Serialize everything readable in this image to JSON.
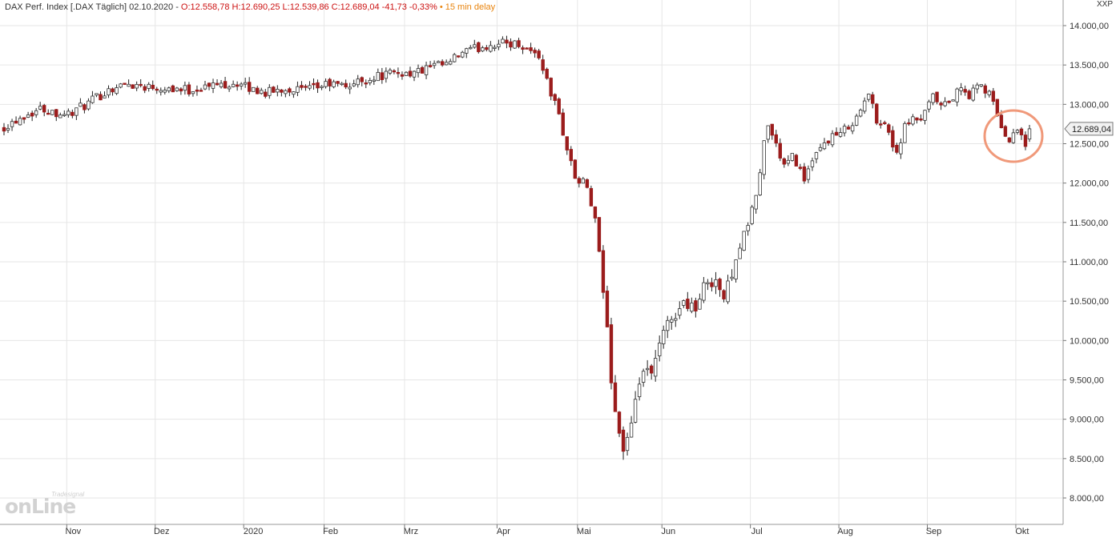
{
  "header": {
    "instrument": "DAX Perf. Index [.DAX Täglich] 02.10.2020 -",
    "ohlc": "O:12.558,78 H:12.690,25 L:12.539,86 C:12.689,04 -41,73 -0,33%",
    "bullet": "•",
    "delay": "15 min delay",
    "axis_code": "XXP"
  },
  "logo": {
    "brand_small": "Tradesignal",
    "brand_big": "onLine"
  },
  "colors": {
    "up_fill": "#ffffff",
    "down_fill": "#9b1c1c",
    "wick": "#222222",
    "grid": "#e6e6e6",
    "highlight": "#f0997a",
    "text": "#333333"
  },
  "chart_data": {
    "type": "candlestick",
    "y_range": [
      7800,
      14200
    ],
    "y_ticks": [
      "14.000,00",
      "13.500,00",
      "13.000,00",
      "12.500,00",
      "12.000,00",
      "11.500,00",
      "11.000,00",
      "10.500,00",
      "10.000,00",
      "9.500,00",
      "9.000,00",
      "8.500,00",
      "8.000,00"
    ],
    "y_tick_values": [
      14000,
      13500,
      13000,
      12500,
      12000,
      11500,
      11000,
      10500,
      10000,
      9500,
      9000,
      8500,
      8000
    ],
    "x_ticks": [
      "Nov",
      "Dez",
      "2020",
      "Feb",
      "Mrz",
      "Apr",
      "Mai",
      "Jun",
      "Jul",
      "Aug",
      "Sep",
      "Okt"
    ],
    "last_value_label": "12.689,04",
    "last_value": 12689.04,
    "grid": true,
    "highlight": "ellipse around the last two weeks (late Sep – early Oct)",
    "anchors": [
      [
        0,
        12720
      ],
      [
        8,
        12850
      ],
      [
        16,
        12950
      ],
      [
        22,
        12900
      ],
      [
        28,
        12880
      ],
      [
        36,
        13000
      ],
      [
        46,
        13200
      ],
      [
        54,
        13260
      ],
      [
        62,
        13230
      ],
      [
        72,
        13210
      ],
      [
        80,
        13180
      ],
      [
        92,
        13250
      ],
      [
        100,
        13270
      ],
      [
        106,
        13200
      ],
      [
        114,
        13150
      ],
      [
        122,
        13200
      ],
      [
        132,
        13180
      ],
      [
        140,
        13260
      ],
      [
        148,
        13230
      ],
      [
        156,
        13310
      ],
      [
        162,
        13360
      ],
      [
        170,
        13400
      ],
      [
        178,
        13400
      ],
      [
        186,
        13480
      ],
      [
        192,
        13500
      ],
      [
        198,
        13650
      ],
      [
        206,
        13720
      ],
      [
        212,
        13770
      ],
      [
        218,
        13780
      ],
      [
        224,
        13760
      ],
      [
        232,
        13600
      ],
      [
        236,
        13200
      ],
      [
        240,
        12900
      ],
      [
        244,
        12400
      ],
      [
        248,
        12000
      ],
      [
        252,
        12000
      ],
      [
        256,
        11500
      ],
      [
        260,
        10500
      ],
      [
        264,
        9200
      ],
      [
        268,
        8600
      ],
      [
        272,
        8900
      ],
      [
        276,
        9650
      ],
      [
        280,
        9500
      ],
      [
        284,
        9950
      ],
      [
        288,
        10250
      ],
      [
        292,
        10400
      ],
      [
        296,
        10500
      ],
      [
        300,
        10400
      ],
      [
        304,
        10750
      ],
      [
        308,
        10800
      ],
      [
        312,
        10500
      ],
      [
        316,
        11000
      ],
      [
        320,
        11300
      ],
      [
        324,
        11650
      ],
      [
        328,
        12200
      ],
      [
        330,
        12800
      ],
      [
        334,
        12500
      ],
      [
        338,
        12200
      ],
      [
        342,
        12350
      ],
      [
        346,
        12050
      ],
      [
        350,
        12250
      ],
      [
        354,
        12450
      ],
      [
        358,
        12600
      ],
      [
        362,
        12600
      ],
      [
        366,
        12750
      ],
      [
        370,
        12850
      ],
      [
        374,
        13150
      ],
      [
        378,
        12800
      ],
      [
        382,
        12750
      ],
      [
        386,
        12350
      ],
      [
        390,
        12700
      ],
      [
        394,
        12800
      ],
      [
        398,
        12820
      ],
      [
        402,
        13100
      ],
      [
        406,
        12950
      ],
      [
        410,
        13050
      ],
      [
        414,
        13200
      ],
      [
        418,
        13100
      ],
      [
        422,
        13250
      ],
      [
        426,
        13150
      ],
      [
        430,
        12900
      ],
      [
        434,
        12500
      ],
      [
        438,
        12750
      ],
      [
        442,
        12500
      ],
      [
        444,
        12689
      ]
    ]
  }
}
